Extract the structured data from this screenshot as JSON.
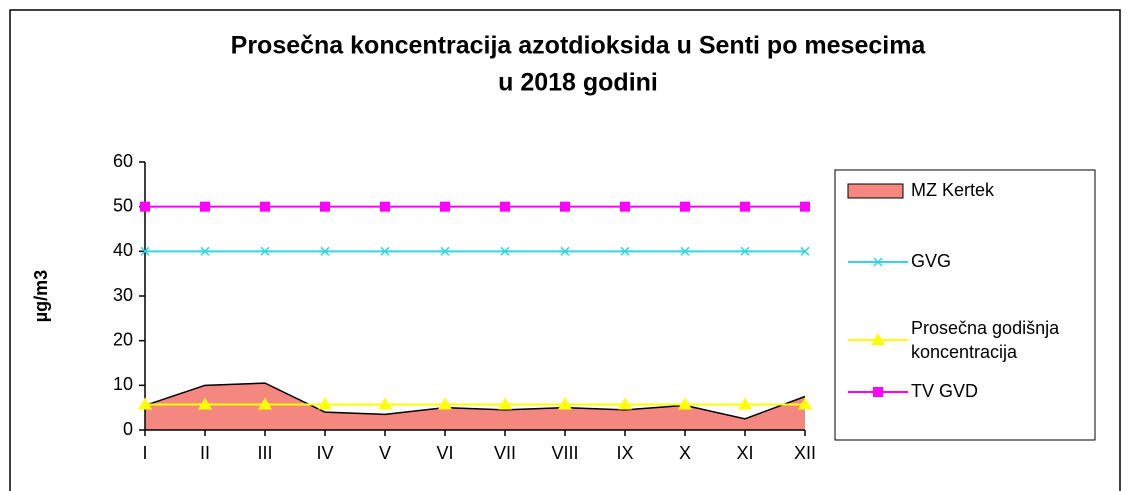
{
  "chart_data": {
    "type": "line",
    "title": [
      "Prosečna koncentracija azotdioksida u Senti po mesecima",
      "u 2018 godini"
    ],
    "y_label": "µg/m3",
    "categories": [
      "I",
      "II",
      "III",
      "IV",
      "V",
      "VI",
      "VII",
      "VIII",
      "IX",
      "X",
      "XI",
      "XII"
    ],
    "series": [
      {
        "name": "MZ Kertek",
        "kind": "area",
        "color": "#f4877f",
        "values": [
          5.5,
          10,
          10.5,
          4,
          3.5,
          5,
          4.5,
          5,
          4.5,
          5.5,
          2.5,
          7.5
        ]
      },
      {
        "name": "GVG",
        "kind": "line",
        "marker": "x",
        "color": "#33d6e0",
        "values": [
          40,
          40,
          40,
          40,
          40,
          40,
          40,
          40,
          40,
          40,
          40,
          40
        ]
      },
      {
        "name": "Prosečna godišnja koncentracija",
        "kind": "line",
        "marker": "triangle",
        "color": "#ffff00",
        "values": [
          5.7,
          5.7,
          5.7,
          5.7,
          5.7,
          5.7,
          5.7,
          5.7,
          5.7,
          5.7,
          5.7,
          5.7
        ]
      },
      {
        "name": "TV GVD",
        "kind": "line",
        "marker": "square",
        "color": "#ff00ff",
        "values": [
          50,
          50,
          50,
          50,
          50,
          50,
          50,
          50,
          50,
          50,
          50,
          50
        ]
      }
    ],
    "ylim": [
      0,
      60
    ],
    "yticks": [
      0,
      10,
      20,
      30,
      40,
      50,
      60
    ],
    "legend": "right"
  }
}
